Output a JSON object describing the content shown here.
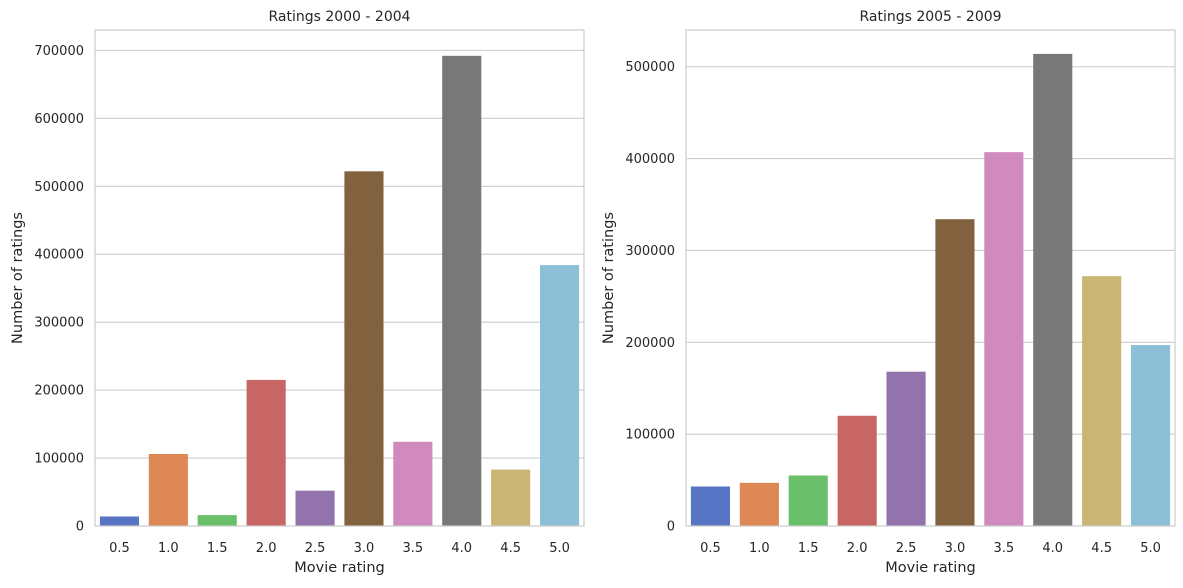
{
  "chart_data": [
    {
      "type": "bar",
      "title": "Ratings 2000 - 2004",
      "xlabel": "Movie rating",
      "ylabel": "Number of ratings",
      "categories": [
        "0.5",
        "1.0",
        "1.5",
        "2.0",
        "2.5",
        "3.0",
        "3.5",
        "4.0",
        "4.5",
        "5.0"
      ],
      "values": [
        14000,
        106000,
        16000,
        215000,
        52000,
        522000,
        124000,
        692000,
        83000,
        384000
      ],
      "ylim": [
        0,
        730000
      ],
      "yticks": [
        0,
        100000,
        200000,
        300000,
        400000,
        500000,
        600000,
        700000
      ],
      "grid": "horizontal"
    },
    {
      "type": "bar",
      "title": "Ratings 2005 - 2009",
      "xlabel": "Movie rating",
      "ylabel": "Number of ratings",
      "categories": [
        "0.5",
        "1.0",
        "1.5",
        "2.0",
        "2.5",
        "3.0",
        "3.5",
        "4.0",
        "4.5",
        "5.0"
      ],
      "values": [
        43000,
        47000,
        55000,
        120000,
        168000,
        334000,
        407000,
        514000,
        272000,
        197000
      ],
      "ylim": [
        0,
        540000
      ],
      "yticks": [
        0,
        100000,
        200000,
        300000,
        400000,
        500000
      ],
      "grid": "horizontal"
    }
  ],
  "palette": [
    "#5874c4",
    "#dd8855",
    "#6ac06a",
    "#c86665",
    "#9373ac",
    "#82613f",
    "#d08abe",
    "#787878",
    "#c9b574",
    "#8bc0d6"
  ],
  "colors": {
    "grid": "#cccccc",
    "spine": "#cccccc",
    "text": "#262626"
  }
}
